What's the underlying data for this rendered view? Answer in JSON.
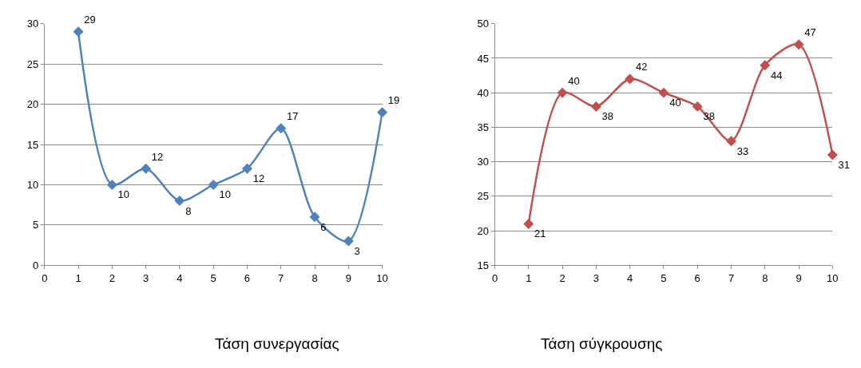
{
  "chart_data": [
    {
      "type": "line",
      "title": "Τάση συνεργασίας",
      "x": [
        1,
        2,
        3,
        4,
        5,
        6,
        7,
        8,
        9,
        10
      ],
      "series": [
        {
          "color": "#4f81bd",
          "values": [
            29,
            10,
            12,
            8,
            10,
            12,
            17,
            6,
            3,
            19
          ]
        }
      ],
      "xlim": [
        0,
        10
      ],
      "xticks": [
        0,
        1,
        2,
        3,
        4,
        5,
        6,
        7,
        8,
        9,
        10
      ],
      "ylim": [
        0,
        30
      ],
      "yticks": [
        0,
        5,
        10,
        15,
        20,
        25,
        30
      ],
      "grid": "y",
      "marker": "diamond",
      "line_style": "solid",
      "data_labels": true
    },
    {
      "type": "line",
      "title": "Τάση σύγκρουσης",
      "x": [
        1,
        2,
        3,
        4,
        5,
        6,
        7,
        8,
        9,
        10
      ],
      "series": [
        {
          "color": "#c0504d",
          "values": [
            21,
            40,
            38,
            42,
            40,
            38,
            33,
            44,
            47,
            31
          ]
        }
      ],
      "xlim": [
        0,
        10
      ],
      "xticks": [
        0,
        1,
        2,
        3,
        4,
        5,
        6,
        7,
        8,
        9,
        10
      ],
      "ylim": [
        15,
        50
      ],
      "yticks": [
        15,
        20,
        25,
        30,
        35,
        40,
        45,
        50
      ],
      "grid": "y",
      "marker": "diamond",
      "line_style": "solid",
      "data_labels": true
    }
  ]
}
